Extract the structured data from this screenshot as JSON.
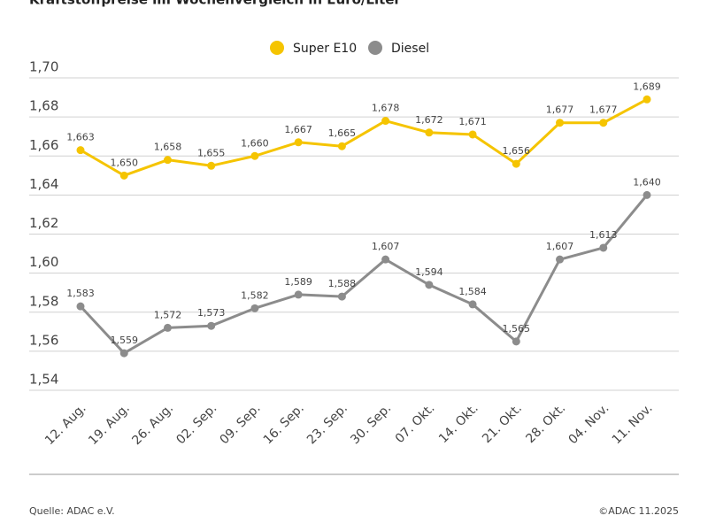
{
  "chart_data": {
    "type": "line",
    "title": "Kraftstoffpreise im Wochenvergleich in Euro/Liter",
    "categories": [
      "12. Aug.",
      "19. Aug.",
      "26. Aug.",
      "02. Sep.",
      "09. Sep.",
      "16. Sep.",
      "23. Sep.",
      "30. Sep.",
      "07. Okt.",
      "14. Okt.",
      "21. Okt.",
      "28. Okt.",
      "04. Nov.",
      "11. Nov."
    ],
    "series": [
      {
        "name": "Super E10",
        "color": "#f5c400",
        "values": [
          1.663,
          1.65,
          1.658,
          1.655,
          1.66,
          1.667,
          1.665,
          1.678,
          1.672,
          1.671,
          1.656,
          1.677,
          1.677,
          1.689
        ],
        "value_labels": [
          "1,663",
          "1,650",
          "1,658",
          "1,655",
          "1,660",
          "1,667",
          "1,665",
          "1,678",
          "1,672",
          "1,671",
          "1,656",
          "1,677",
          "1,677",
          "1,689"
        ]
      },
      {
        "name": "Diesel",
        "color": "#8c8c8c",
        "values": [
          1.583,
          1.559,
          1.572,
          1.573,
          1.582,
          1.589,
          1.588,
          1.607,
          1.594,
          1.584,
          1.565,
          1.607,
          1.613,
          1.64
        ],
        "value_labels": [
          "1,583",
          "1,559",
          "1,572",
          "1,573",
          "1,582",
          "1,589",
          "1,588",
          "1,607",
          "1,594",
          "1,584",
          "1,565",
          "1,607",
          "1,613",
          "1,640"
        ]
      }
    ],
    "ylim": [
      1.54,
      1.7
    ],
    "yticks": [
      {
        "value": 1.54,
        "label": "1,54"
      },
      {
        "value": 1.56,
        "label": "1,56"
      },
      {
        "value": 1.58,
        "label": "1,58"
      },
      {
        "value": 1.6,
        "label": "1,60"
      },
      {
        "value": 1.62,
        "label": "1,62"
      },
      {
        "value": 1.64,
        "label": "1,64"
      },
      {
        "value": 1.66,
        "label": "1,66"
      },
      {
        "value": 1.68,
        "label": "1,68"
      },
      {
        "value": 1.7,
        "label": "1,70"
      }
    ],
    "grid": true,
    "source": "Quelle: ADAC e.V.",
    "copyright": "©ADAC 11.2025"
  }
}
